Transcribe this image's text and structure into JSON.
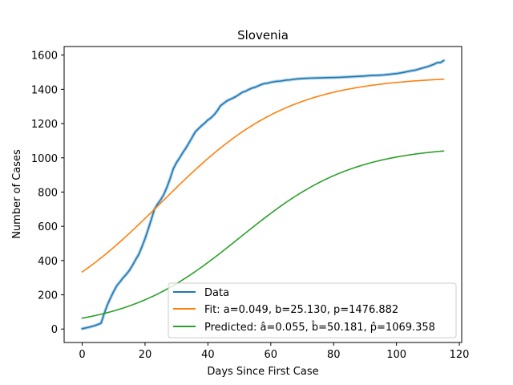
{
  "chart_data": {
    "type": "line",
    "title": "Slovenia",
    "xlabel": "Days Since First Case",
    "ylabel": "Number of Cases",
    "xlim": [
      -5.75,
      120.75
    ],
    "ylim": [
      -78.5,
      1650
    ],
    "xticks": [
      0,
      20,
      40,
      60,
      80,
      100,
      120
    ],
    "yticks": [
      0,
      200,
      400,
      600,
      800,
      1000,
      1200,
      1400,
      1600
    ],
    "grid": false,
    "legend_position": "lower-right",
    "series": [
      {
        "name": "Data",
        "color": "#1f77b4",
        "x": [
          0,
          2,
          4,
          6,
          7,
          8,
          9,
          10,
          11,
          12,
          13,
          14,
          15,
          16,
          17,
          18,
          19,
          20,
          21,
          22,
          23,
          24,
          25,
          26,
          27,
          28,
          29,
          30,
          31,
          32,
          33,
          34,
          35,
          36,
          37,
          38,
          39,
          40,
          41,
          42,
          43,
          44,
          45,
          46,
          47,
          48,
          49,
          50,
          51,
          52,
          53,
          54,
          55,
          56,
          57,
          58,
          59,
          60,
          61,
          62,
          63,
          64,
          65,
          66,
          67,
          68,
          70,
          72,
          74,
          76,
          78,
          80,
          82,
          84,
          86,
          88,
          90,
          92,
          94,
          96,
          98,
          100,
          102,
          104,
          106,
          108,
          110,
          112,
          113,
          114,
          115
        ],
        "y": [
          2,
          10,
          20,
          34,
          90,
          141,
          181,
          219,
          253,
          275,
          299,
          319,
          342,
          372,
          405,
          436,
          480,
          528,
          583,
          641,
          700,
          730,
          756,
          787,
          830,
          880,
          937,
          972,
          1000,
          1030,
          1057,
          1088,
          1120,
          1152,
          1170,
          1188,
          1203,
          1221,
          1234,
          1252,
          1275,
          1304,
          1318,
          1332,
          1341,
          1349,
          1359,
          1371,
          1383,
          1389,
          1399,
          1407,
          1412,
          1420,
          1428,
          1434,
          1436,
          1441,
          1444,
          1447,
          1448,
          1451,
          1454,
          1455,
          1458,
          1460,
          1463,
          1465,
          1466,
          1467,
          1468,
          1469,
          1470,
          1472,
          1474,
          1476,
          1478,
          1481,
          1482,
          1484,
          1488,
          1492,
          1498,
          1506,
          1512,
          1523,
          1533,
          1547,
          1556,
          1556,
          1568
        ]
      },
      {
        "name": "Fit: a=0.049, b=25.130, p=1476.882",
        "color": "#ff7f0e",
        "model": "logistic",
        "params": {
          "a": 0.049,
          "b": 25.13,
          "p": 1476.882
        },
        "x_range": [
          0,
          115
        ]
      },
      {
        "name": "Predicted: â=0.055, b̂=50.181, p̂=1069.358",
        "color": "#2ca02c",
        "model": "logistic",
        "params": {
          "a": 0.055,
          "b": 50.181,
          "p": 1069.358
        },
        "x_range": [
          0,
          115
        ]
      }
    ]
  }
}
